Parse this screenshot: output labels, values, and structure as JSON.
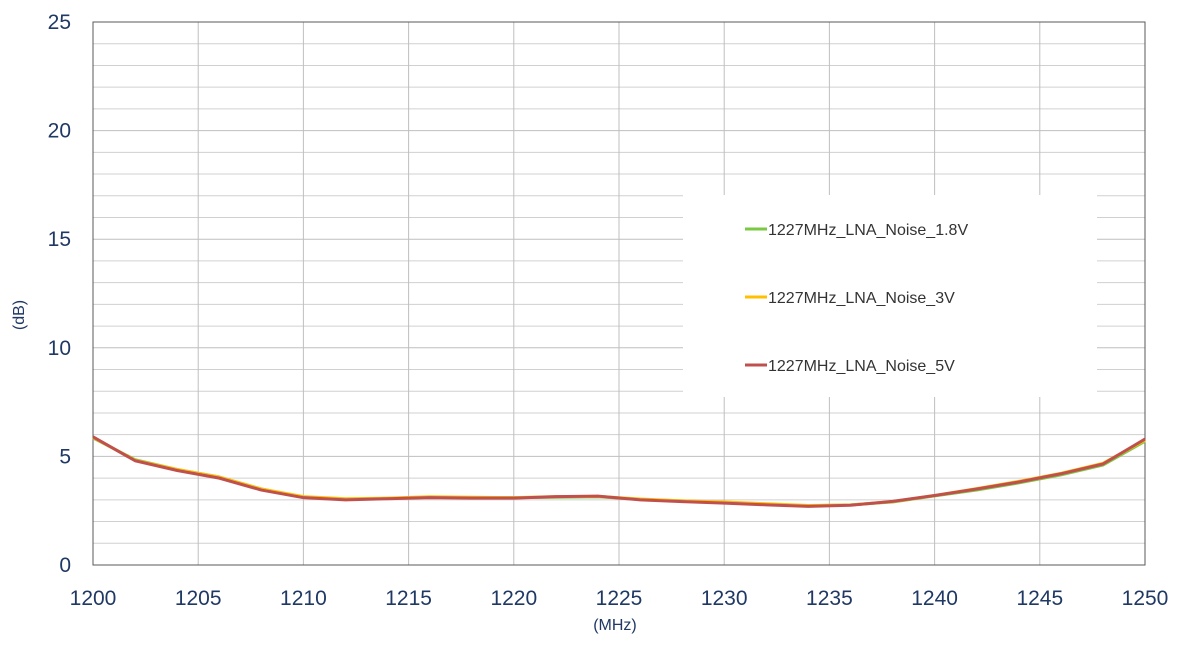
{
  "chart_data": {
    "type": "line",
    "x_label": "(MHz)",
    "y_label": "(dB)",
    "x": [
      1200,
      1202,
      1204,
      1206,
      1208,
      1210,
      1212,
      1214,
      1216,
      1218,
      1220,
      1222,
      1224,
      1226,
      1228,
      1230,
      1232,
      1234,
      1236,
      1238,
      1240,
      1242,
      1244,
      1246,
      1248,
      1250
    ],
    "series": [
      {
        "name": "1227MHz_LNA_Noise_1.8V",
        "color": "#7ac943",
        "values": [
          5.85,
          4.85,
          4.4,
          4.05,
          3.5,
          3.12,
          3.02,
          3.07,
          3.12,
          3.1,
          3.1,
          3.12,
          3.14,
          3.02,
          2.95,
          2.88,
          2.8,
          2.73,
          2.77,
          2.9,
          3.18,
          3.45,
          3.78,
          4.15,
          4.6,
          5.7
        ]
      },
      {
        "name": "1227MHz_LNA_Noise_3V",
        "color": "#ffc000",
        "values": [
          5.88,
          4.82,
          4.4,
          4.05,
          3.5,
          3.15,
          3.05,
          3.08,
          3.14,
          3.12,
          3.1,
          3.15,
          3.16,
          3.04,
          2.95,
          2.9,
          2.82,
          2.74,
          2.76,
          2.92,
          3.2,
          3.52,
          3.85,
          4.22,
          4.68,
          5.75
        ]
      },
      {
        "name": "1227MHz_LNA_Noise_5V",
        "color": "#c0504d",
        "values": [
          5.9,
          4.8,
          4.35,
          4.0,
          3.45,
          3.1,
          3.0,
          3.05,
          3.1,
          3.08,
          3.08,
          3.15,
          3.17,
          3.0,
          2.92,
          2.85,
          2.77,
          2.7,
          2.75,
          2.93,
          3.2,
          3.5,
          3.82,
          4.2,
          4.65,
          5.8
        ]
      }
    ],
    "xlim": [
      1200,
      1250
    ],
    "xticks": [
      1200,
      1205,
      1210,
      1215,
      1220,
      1225,
      1230,
      1235,
      1240,
      1245,
      1250
    ],
    "ylim": [
      0,
      25
    ],
    "yticks": [
      0,
      5,
      10,
      15,
      20,
      25
    ],
    "grid": true,
    "y_minor_divisions": 5,
    "legend": "right"
  }
}
